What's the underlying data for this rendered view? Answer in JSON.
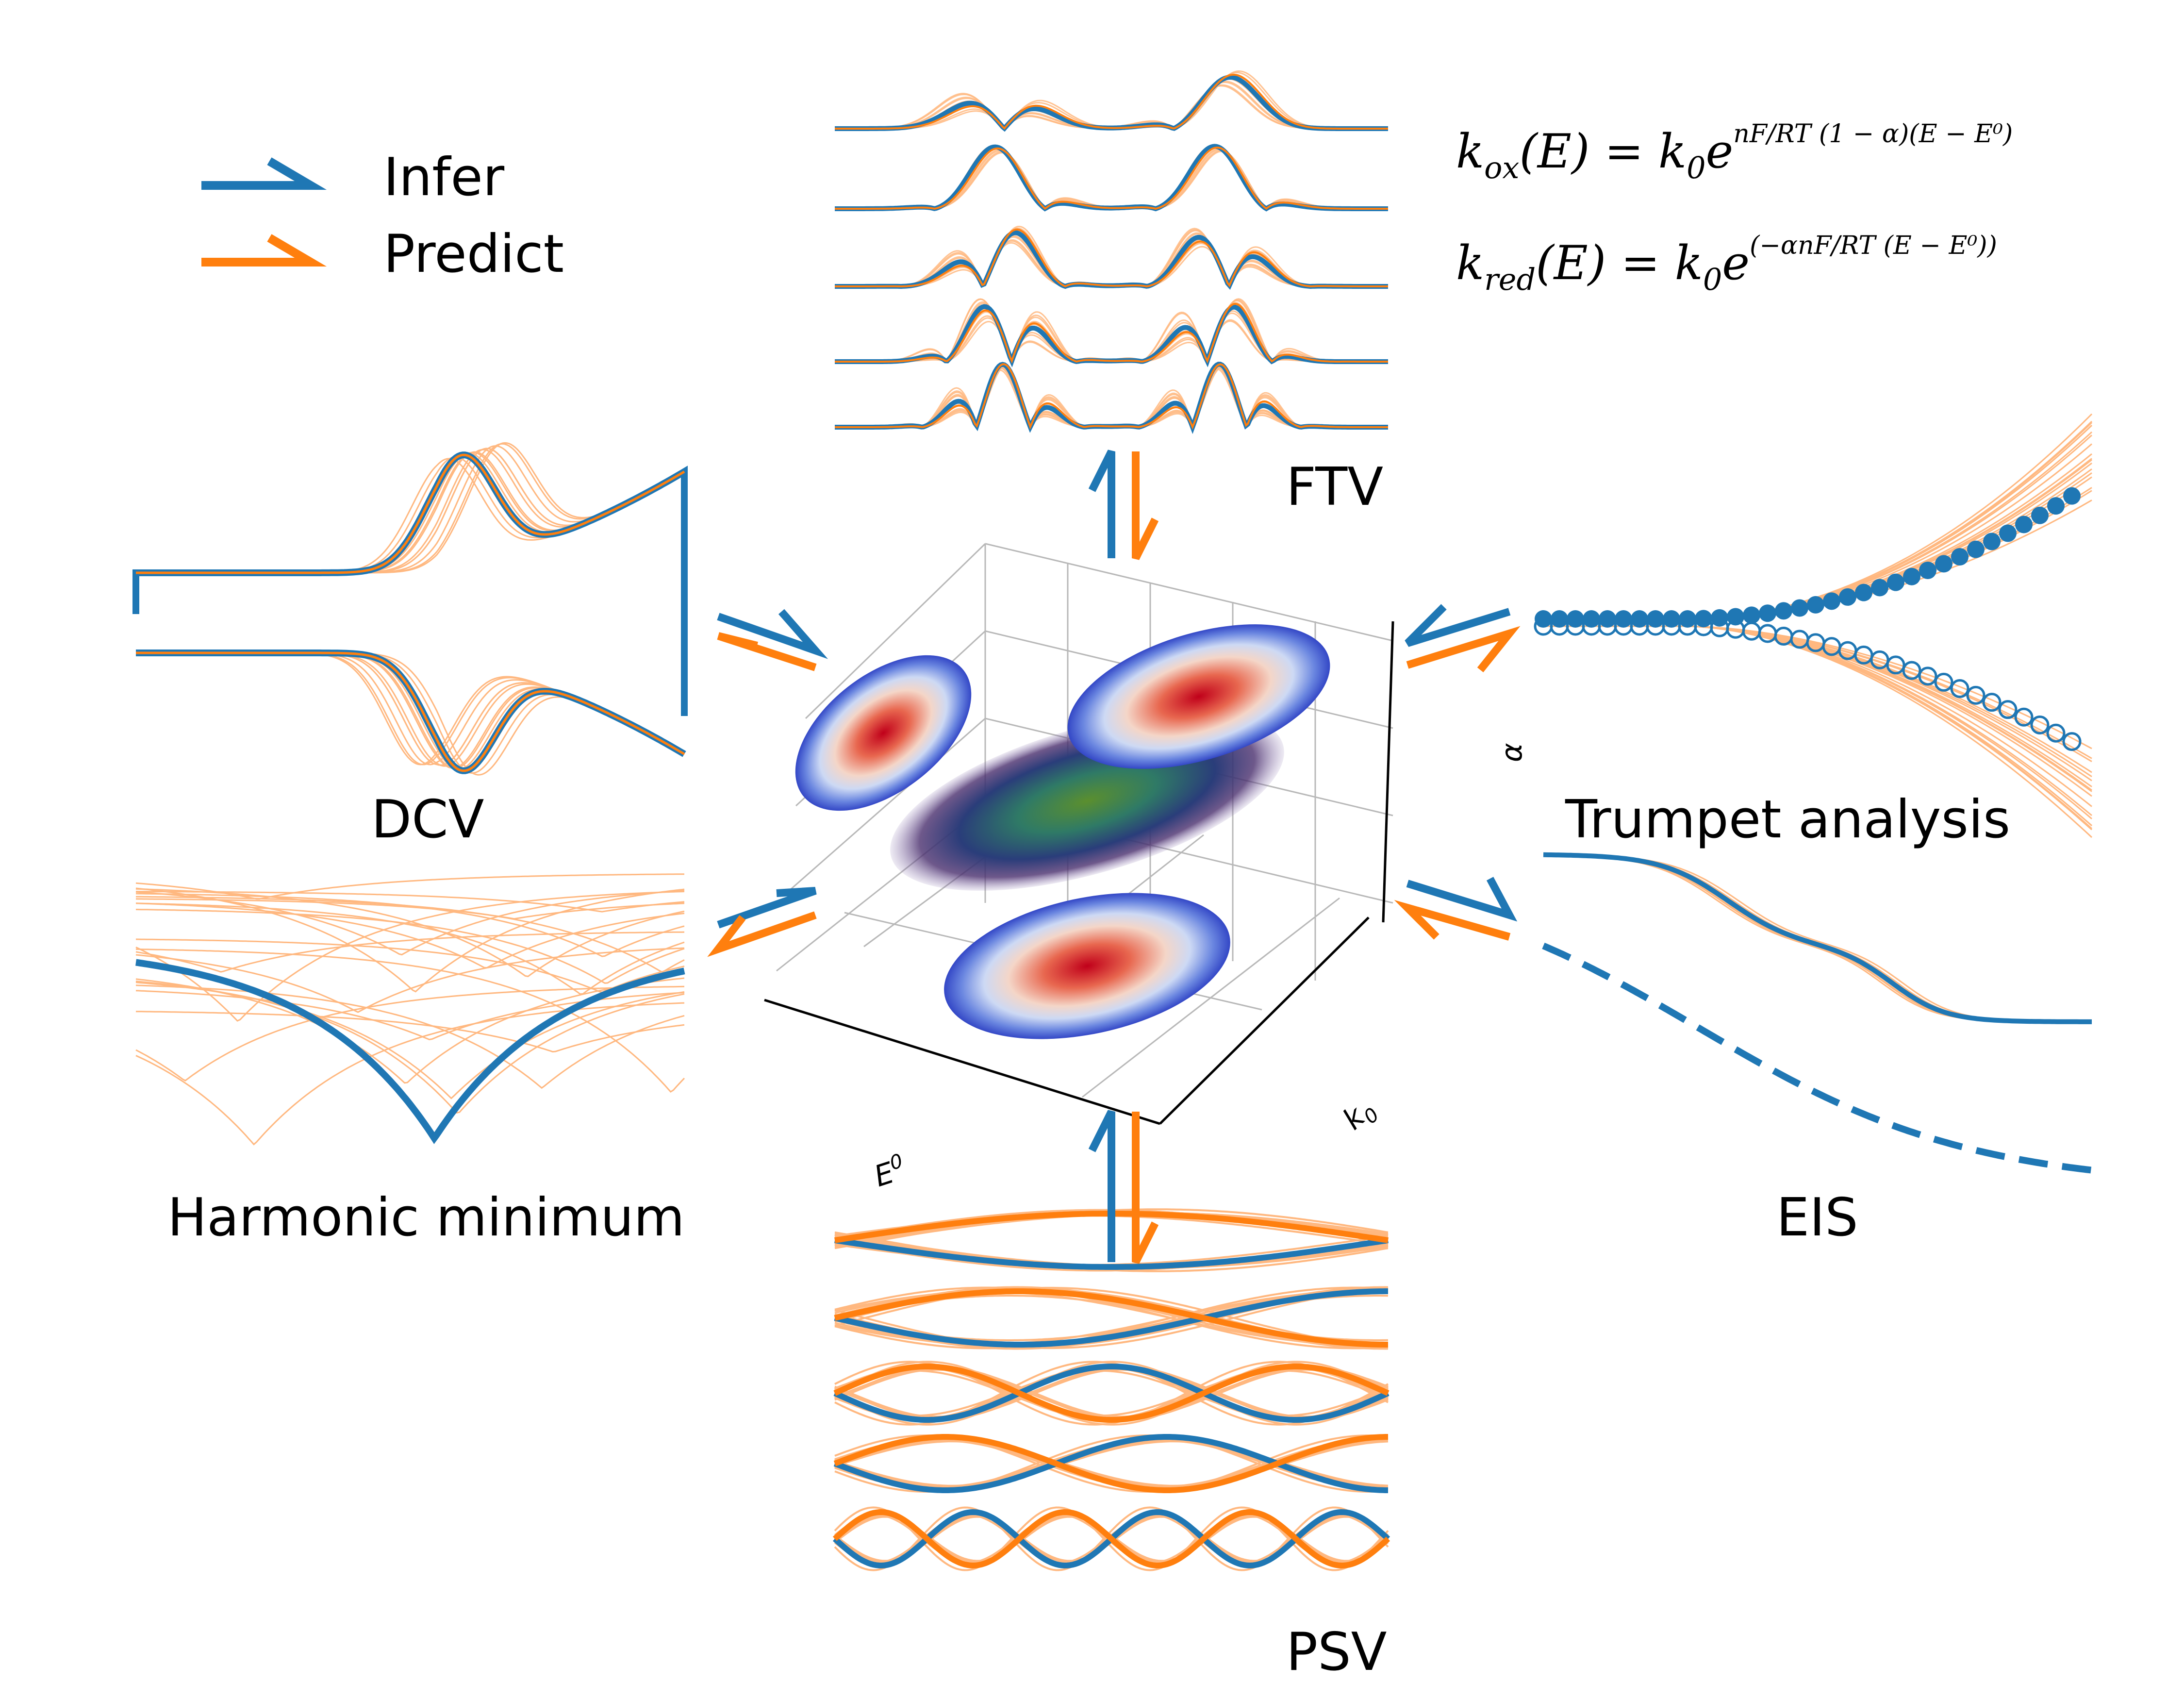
{
  "colors": {
    "infer": "#1f77b4",
    "predict": "#ff7f0e",
    "predict_light": "#ffb880",
    "axis": "#000000",
    "grid": "#b0b0b0",
    "background": "#ffffff"
  },
  "legend": {
    "infer_label": "Infer",
    "predict_label": "Predict"
  },
  "panels": {
    "ftv": {
      "label": "FTV"
    },
    "dcv": {
      "label": "DCV"
    },
    "harmonic": {
      "label": "Harmonic minimum"
    },
    "trumpet": {
      "label": "Trumpet analysis"
    },
    "eis": {
      "label": "EIS"
    },
    "psv": {
      "label": "PSV"
    }
  },
  "central_plot": {
    "type": "3d-posterior",
    "axes": {
      "x_label": "E",
      "x_sup": "0",
      "y_label": "k",
      "y_sub": "0",
      "z_label": "α"
    }
  },
  "equations": {
    "k_ox": {
      "lhs": "k",
      "lhs_sub": "ox",
      "arg": "(E) = k",
      "k_sub": "0",
      "e": "e",
      "exponent": "nF/RT (1 − α)(E − E⁰)"
    },
    "k_red": {
      "lhs": "k",
      "lhs_sub": "red",
      "arg": "(E) = k",
      "k_sub": "0",
      "e": "e",
      "exponent": "(−αnF/RT (E − E⁰))"
    }
  }
}
